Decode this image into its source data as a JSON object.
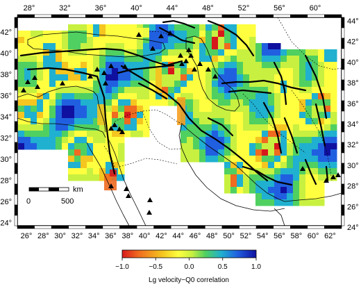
{
  "map": {
    "lon_labels_top": [
      "28°",
      "32°",
      "36°",
      "40°",
      "44°",
      "48°",
      "52°",
      "56°",
      "60°"
    ],
    "lon_labels_bottom": [
      "26°",
      "28°",
      "30°",
      "32°",
      "34°",
      "36°",
      "38°",
      "40°",
      "42°",
      "44°",
      "46°",
      "48°",
      "50°",
      "52°",
      "54°",
      "56°",
      "58°",
      "60°",
      "62°"
    ],
    "lat_labels_left": [
      "42°",
      "40°",
      "38°",
      "36°",
      "34°",
      "32°",
      "30°",
      "28°",
      "26°",
      "24°"
    ],
    "lat_labels_right": [
      "44°",
      "42°",
      "40°",
      "38°",
      "36°",
      "34°",
      "32°",
      "30°",
      "28°",
      "26°",
      "24°"
    ],
    "scale_bar": {
      "zero_label": "0",
      "max_label": "500",
      "unit_label": "km"
    },
    "legend": {
      "tick_labels": [
        "−1.0",
        "−0.5",
        "0.0",
        "0.5",
        "1.0"
      ],
      "title": "Lg velocity−Q0 correlation",
      "colors": [
        "#d7191c",
        "#f06a20",
        "#f5c520",
        "#ffff40",
        "#c8f040",
        "#50d060",
        "#20b0d0",
        "#2060e0",
        "#1010a0"
      ]
    }
  }
}
